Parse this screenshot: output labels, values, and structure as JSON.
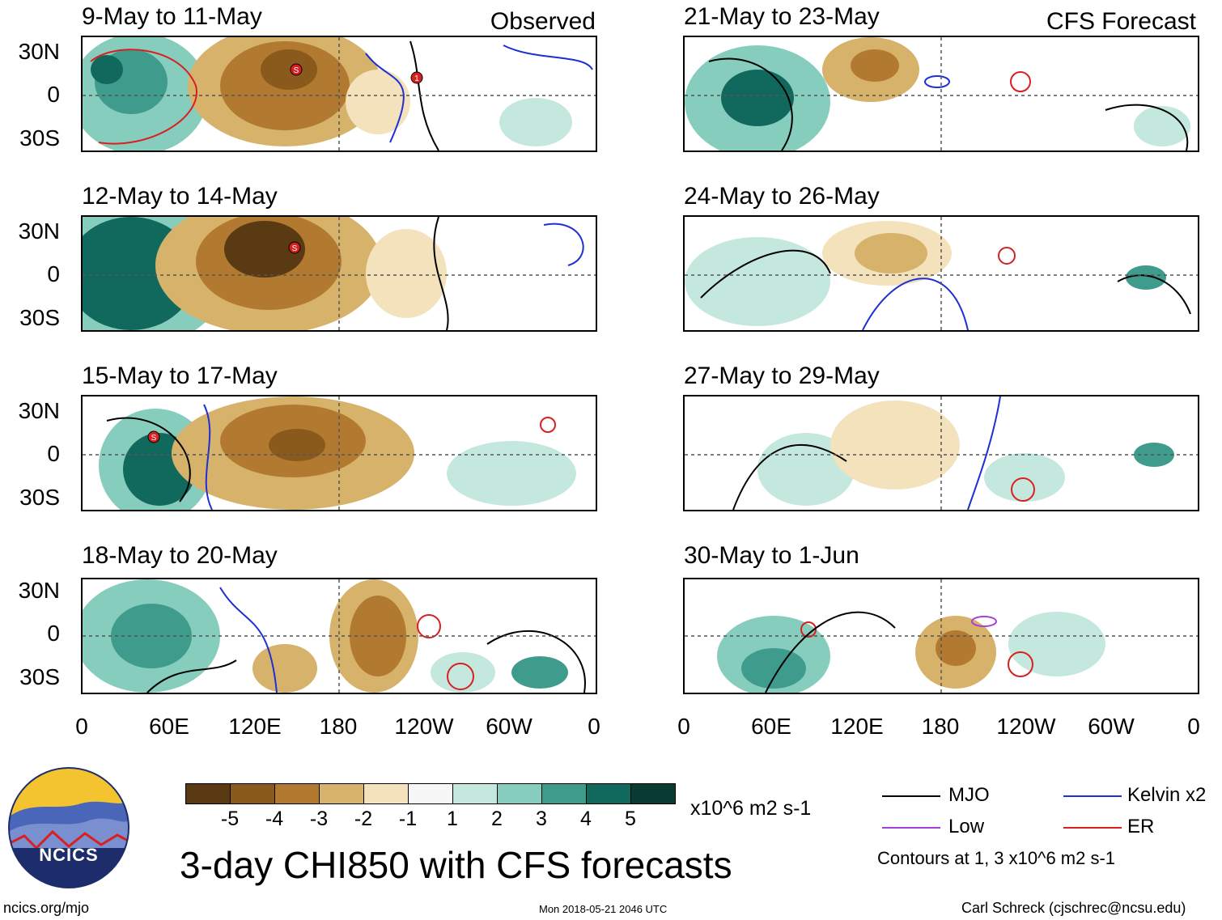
{
  "header": {
    "observed_label": "Observed",
    "forecast_label": "CFS Forecast"
  },
  "panels_left": [
    {
      "title": "9-May to 11-May"
    },
    {
      "title": "12-May to 14-May"
    },
    {
      "title": "15-May to 17-May"
    },
    {
      "title": "18-May to 20-May"
    }
  ],
  "panels_right": [
    {
      "title": "21-May to 23-May"
    },
    {
      "title": "24-May to 26-May"
    },
    {
      "title": "27-May to 29-May"
    },
    {
      "title": "30-May to 1-Jun"
    }
  ],
  "lat_labels": [
    "30N",
    "0",
    "30S"
  ],
  "lon_labels": [
    "0",
    "60E",
    "120E",
    "180",
    "120W",
    "60W",
    "0"
  ],
  "storm_markers": [
    {
      "panel": "9-May to 11-May",
      "symbol": "S"
    },
    {
      "panel": "9-May to 11-May",
      "symbol": "1"
    },
    {
      "panel": "12-May to 14-May",
      "symbol": "S"
    },
    {
      "panel": "15-May to 17-May",
      "symbol": "S"
    }
  ],
  "colorbar": {
    "labels": [
      "-5",
      "-4",
      "-3",
      "-2",
      "-1",
      "1",
      "2",
      "3",
      "4",
      "5"
    ],
    "colors": [
      "#5a3a12",
      "#8a5a1c",
      "#b27a30",
      "#d7b26a",
      "#f3e2bc",
      "#f7f7f7",
      "#c5e8de",
      "#86cdbd",
      "#3f9c8c",
      "#11695e",
      "#093b33"
    ],
    "units": "x10^6 m2 s-1"
  },
  "legend": {
    "items": [
      {
        "label": "MJO",
        "color": "#000000"
      },
      {
        "label": "Kelvin x2",
        "color": "#1e2fd6"
      },
      {
        "label": "Low",
        "color": "#a23fd8"
      },
      {
        "label": "ER",
        "color": "#d82020"
      }
    ],
    "contours_note": "Contours at 1, 3 x10^6 m2 s-1"
  },
  "logo": {
    "text": "NCICS"
  },
  "main_title": "3-day CHI850 with CFS forecasts",
  "footer": {
    "url": "ncics.org/mjo",
    "timestamp": "Mon 2018-05-21 2046 UTC",
    "credit": "Carl Schreck (cjschrec@ncsu.edu)"
  }
}
